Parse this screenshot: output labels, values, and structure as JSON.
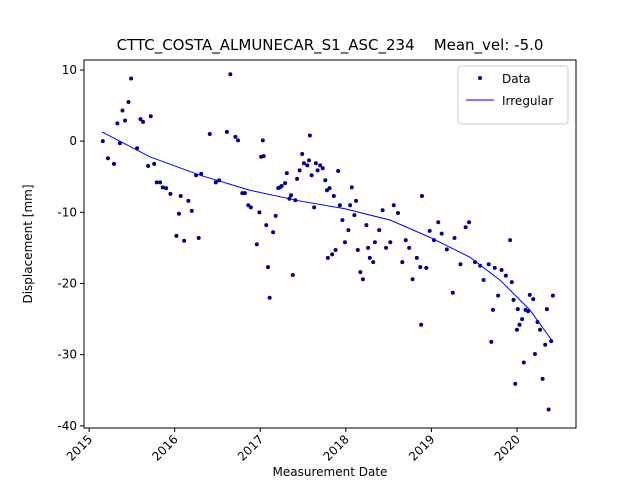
{
  "chart_data": {
    "type": "scatter",
    "title": "CTTC_COSTA_ALMUNECAR_S1_ASC_234    Mean_vel: -5.0",
    "x_label": "Measurement Date",
    "y_label": "Displacement [mm]",
    "xlim": [
      2014.94,
      2020.69
    ],
    "xticks": [
      2015,
      2016,
      2017,
      2018,
      2019,
      2020
    ],
    "ylim": [
      -40.3,
      11.4
    ],
    "yticks": [
      10,
      0,
      -10,
      -20,
      -30,
      -40
    ],
    "legend": "upper right",
    "series": [
      {
        "name": "Data",
        "type": "scatter",
        "color": "#00008b",
        "x": [
          2015.16,
          2015.22,
          2015.29,
          2015.33,
          2015.36,
          2015.39,
          2015.42,
          2015.46,
          2015.49,
          2015.56,
          2015.6,
          2015.63,
          2015.69,
          2015.72,
          2015.76,
          2015.79,
          2015.83,
          2015.86,
          2015.9,
          2015.95,
          2016.02,
          2016.05,
          2016.07,
          2016.11,
          2016.16,
          2016.2,
          2016.25,
          2016.28,
          2016.31,
          2016.41,
          2016.48,
          2016.52,
          2016.61,
          2016.65,
          2016.71,
          2016.74,
          2016.79,
          2016.82,
          2016.86,
          2016.89,
          2016.96,
          2016.99,
          2017.01,
          2017.03,
          2017.04,
          2017.07,
          2017.09,
          2017.11,
          2017.15,
          2017.18,
          2017.21,
          2017.23,
          2017.25,
          2017.29,
          2017.31,
          2017.34,
          2017.36,
          2017.38,
          2017.41,
          2017.43,
          2017.46,
          2017.49,
          2017.51,
          2017.55,
          2017.57,
          2017.58,
          2017.6,
          2017.63,
          2017.65,
          2017.67,
          2017.7,
          2017.73,
          2017.76,
          2017.78,
          2017.79,
          2017.81,
          2017.84,
          2017.86,
          2017.88,
          2017.91,
          2017.93,
          2017.96,
          2017.99,
          2018.03,
          2018.05,
          2018.07,
          2018.1,
          2018.12,
          2018.14,
          2018.17,
          2018.2,
          2018.24,
          2018.26,
          2018.28,
          2018.32,
          2018.34,
          2018.39,
          2018.43,
          2018.47,
          2018.52,
          2018.56,
          2018.61,
          2018.66,
          2018.7,
          2018.74,
          2018.78,
          2018.83,
          2018.87,
          2018.88,
          2018.89,
          2018.94,
          2018.98,
          2019.03,
          2019.08,
          2019.12,
          2019.18,
          2019.25,
          2019.27,
          2019.34,
          2019.4,
          2019.44,
          2019.51,
          2019.57,
          2019.61,
          2019.67,
          2019.7,
          2019.72,
          2019.74,
          2019.78,
          2019.82,
          2019.87,
          2019.92,
          2019.94,
          2019.96,
          2019.98,
          2020.0,
          2020.01,
          2020.03,
          2020.06,
          2020.08,
          2020.1,
          2020.13,
          2020.15,
          2020.19,
          2020.21,
          2020.24,
          2020.27,
          2020.3,
          2020.33,
          2020.35,
          2020.37,
          2020.4,
          2020.42
        ],
        "values": [
          0.0,
          -2.4,
          -3.2,
          2.5,
          -0.3,
          4.3,
          2.9,
          5.5,
          8.8,
          -1.0,
          3.1,
          2.7,
          -3.5,
          3.5,
          -3.2,
          -5.8,
          -5.8,
          -6.5,
          -6.6,
          -7.4,
          -13.3,
          -10.2,
          -7.7,
          -14.0,
          -8.4,
          -9.8,
          -4.8,
          -13.6,
          -4.6,
          1.0,
          -5.8,
          -5.5,
          1.3,
          9.4,
          0.6,
          0.1,
          -7.3,
          -7.3,
          -9.0,
          -9.3,
          -14.5,
          -10.0,
          -2.2,
          0.1,
          -2.1,
          -11.8,
          -17.7,
          -22.0,
          -12.8,
          -10.5,
          -6.6,
          -6.5,
          -6.3,
          -5.9,
          -4.5,
          -8.1,
          -7.6,
          -18.8,
          -8.3,
          -5.3,
          -4.1,
          -1.8,
          -3.1,
          -3.4,
          -2.7,
          0.8,
          -4.8,
          -9.3,
          -3.1,
          -4.1,
          -3.4,
          -3.8,
          -5.5,
          -6.9,
          -16.4,
          -6.6,
          -15.9,
          -7.7,
          -15.3,
          -4.2,
          -9.0,
          -11.1,
          -14.2,
          -12.5,
          -9.0,
          -6.5,
          -10.4,
          -8.4,
          -15.3,
          -18.4,
          -19.4,
          -11.8,
          -15.0,
          -16.4,
          -17.0,
          -14.2,
          -12.5,
          -9.7,
          -15.0,
          -14.2,
          -9.0,
          -10.1,
          -17.0,
          -13.9,
          -15.0,
          -19.4,
          -16.4,
          -17.7,
          -25.8,
          -7.7,
          -17.8,
          -12.6,
          -13.9,
          -11.4,
          -13.0,
          -15.2,
          -21.3,
          -13.6,
          -17.3,
          -12.1,
          -11.4,
          -17.0,
          -17.5,
          -19.5,
          -17.3,
          -28.2,
          -23.7,
          -17.8,
          -21.7,
          -18.1,
          -18.9,
          -13.9,
          -19.8,
          -22.3,
          -34.1,
          -26.5,
          -23.6,
          -25.8,
          -25.0,
          -31.1,
          -23.7,
          -23.9,
          -21.6,
          -22.2,
          -29.9,
          -25.4,
          -26.5,
          -33.4,
          -28.6,
          -23.6,
          -37.7,
          -28.1,
          -21.7
        ]
      },
      {
        "name": "Irregular",
        "type": "line",
        "color": "#0000ff",
        "x": [
          2015.15,
          2015.71,
          2016.3,
          2016.88,
          2017.46,
          2017.99,
          2018.52,
          2018.98,
          2019.45,
          2019.8,
          2020.15,
          2020.42
        ],
        "values": [
          1.3,
          -2.2,
          -4.8,
          -6.9,
          -8.4,
          -9.5,
          -11.1,
          -13.5,
          -16.3,
          -19.5,
          -23.7,
          -28.2
        ]
      }
    ]
  }
}
